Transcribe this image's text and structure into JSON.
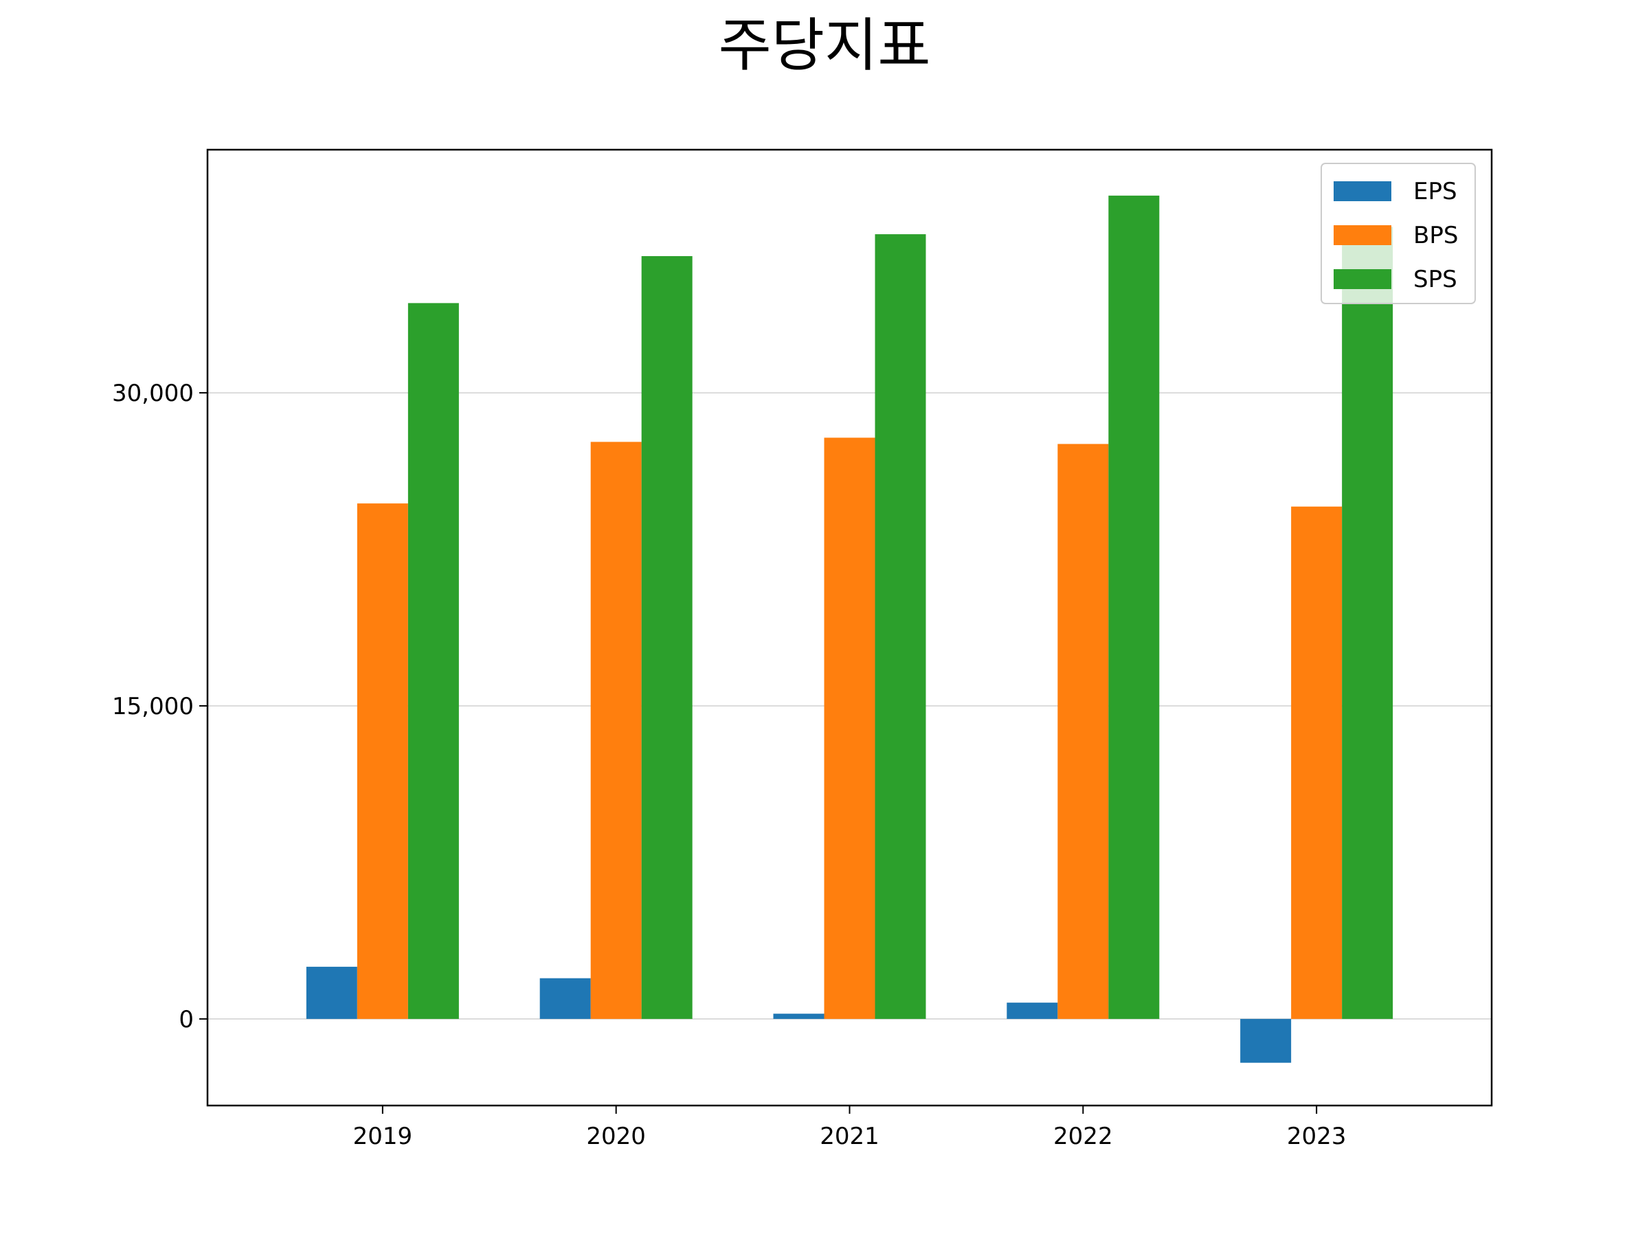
{
  "chart_data": {
    "type": "bar",
    "title": "주당지표",
    "xlabel": "",
    "ylabel": "",
    "categories": [
      "2019",
      "2020",
      "2021",
      "2022",
      "2023"
    ],
    "series": [
      {
        "name": "EPS",
        "color": "#1f77b4",
        "values": [
          2500,
          1950,
          250,
          780,
          -2100
        ]
      },
      {
        "name": "BPS",
        "color": "#ff7f0e",
        "values": [
          24700,
          27650,
          27850,
          27550,
          24550
        ]
      },
      {
        "name": "SPS",
        "color": "#2ca02c",
        "values": [
          34300,
          36550,
          37600,
          39450,
          37950
        ]
      }
    ],
    "yticks": [
      0,
      15000,
      30000
    ],
    "ytick_labels": [
      "0",
      "15,000",
      "30,000"
    ],
    "ylim": [
      -4150,
      41650
    ],
    "grid": "y",
    "legend_position": "top-right"
  }
}
